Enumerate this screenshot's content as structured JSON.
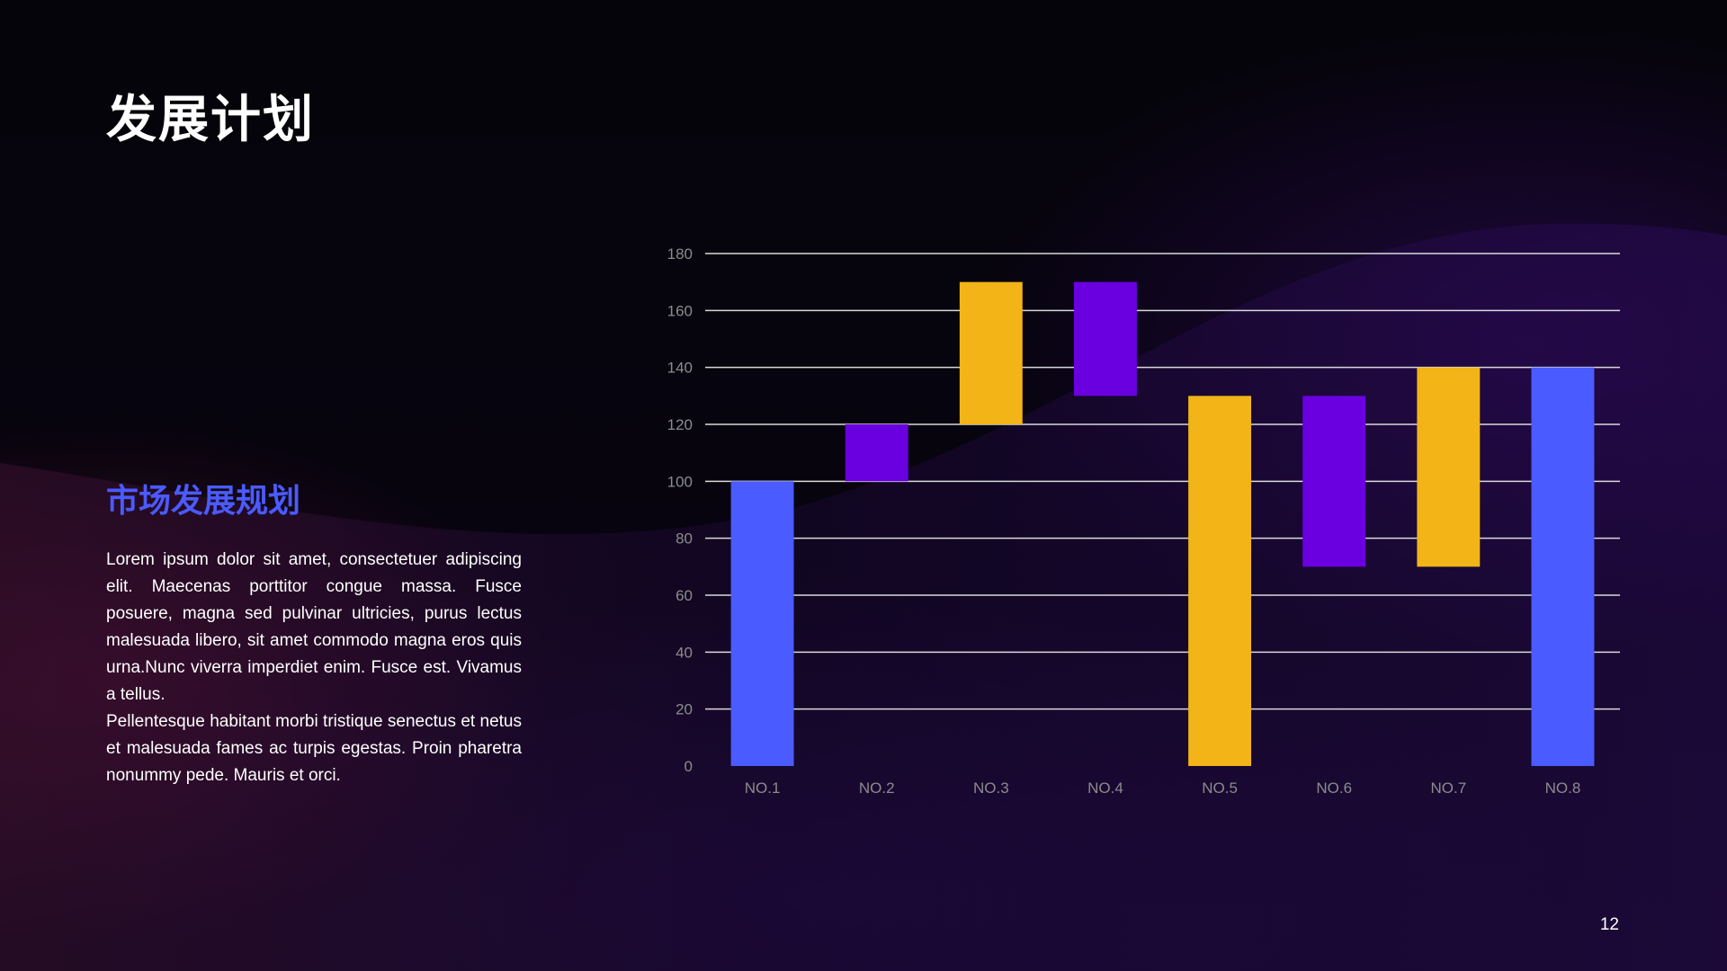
{
  "slide": {
    "title": "发展计划",
    "subtitle": "市场发展规划",
    "paragraphs": [
      "Lorem ipsum dolor sit amet, consectetuer adipiscing elit. Maecenas porttitor congue massa. Fusce posuere, magna sed pulvinar ultricies, purus lectus malesuada libero, sit amet commodo magna eros quis urna.Nunc viverra imperdiet enim. Fusce est. Vivamus a tellus.",
      "Pellentesque habitant morbi tristique senectus et netus et malesuada fames ac turpis egestas. Proin pharetra nonummy pede. Mauris et orci."
    ],
    "page_number": "12"
  },
  "colors": {
    "blue": "#4a5bff",
    "purple": "#6a00e0",
    "yellow": "#f2b417",
    "gridline": "#d9d9d9",
    "tick_label": "#8c8c8c"
  },
  "chart_data": {
    "type": "bar",
    "subtype": "waterfall",
    "categories": [
      "NO.1",
      "NO.2",
      "NO.3",
      "NO.4",
      "NO.5",
      "NO.6",
      "NO.7",
      "NO.8"
    ],
    "bars": [
      {
        "category": "NO.1",
        "low": 0,
        "high": 100,
        "color": "blue"
      },
      {
        "category": "NO.2",
        "low": 100,
        "high": 120,
        "color": "purple"
      },
      {
        "category": "NO.3",
        "low": 120,
        "high": 170,
        "color": "yellow"
      },
      {
        "category": "NO.4",
        "low": 130,
        "high": 170,
        "color": "purple"
      },
      {
        "category": "NO.5",
        "low": 0,
        "high": 130,
        "color": "yellow"
      },
      {
        "category": "NO.6",
        "low": 70,
        "high": 130,
        "color": "purple"
      },
      {
        "category": "NO.7",
        "low": 70,
        "high": 140,
        "color": "yellow"
      },
      {
        "category": "NO.8",
        "low": 0,
        "high": 140,
        "color": "blue"
      }
    ],
    "yticks": [
      "0",
      "20",
      "40",
      "60",
      "80",
      "100",
      "120",
      "140",
      "160",
      "180"
    ],
    "ylim": [
      0,
      180
    ],
    "grid": true,
    "legend": "none"
  }
}
